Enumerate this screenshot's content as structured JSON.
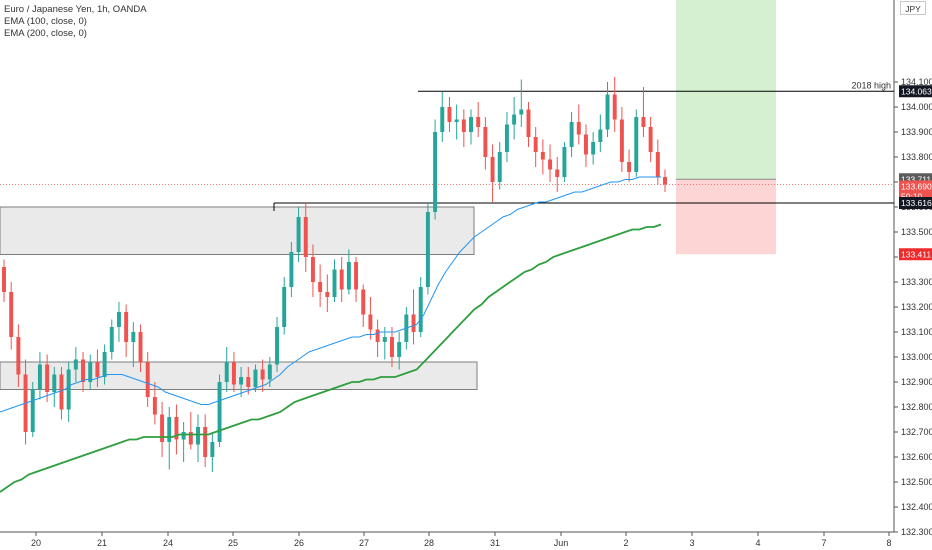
{
  "legend": {
    "title": "Euro / Japanese Yen, 1h, OANDA",
    "ema100": "EMA (100, close, 0)",
    "ema200": "EMA (200, close, 0)"
  },
  "currency": "JPY",
  "colors": {
    "up": "#26a69a",
    "down": "#ef5350",
    "ema100": "#2196f3",
    "ema200": "#2e9e3e",
    "zone_fill": "#e6e6e6",
    "zone_border": "#7d7d7d",
    "profit": "#d4f0d0",
    "loss": "#fdd5d5",
    "level_line": "#000000"
  },
  "chart_data": {
    "type": "candlestick",
    "symbol": "EURJPY",
    "timeframe": "1h",
    "ylim": [
      132.28,
      134.38
    ],
    "y_ticks": [
      "134.100",
      "134.000",
      "133.900",
      "133.800",
      "133.700",
      "133.600",
      "133.500",
      "133.400",
      "133.300",
      "133.200",
      "133.100",
      "133.000",
      "132.900",
      "132.800",
      "132.700",
      "132.600",
      "132.500",
      "132.400",
      "132.300"
    ],
    "x_ticks": [
      "20",
      "21",
      "24",
      "25",
      "26",
      "27",
      "28",
      "31",
      "Jun",
      "2",
      "3",
      "4",
      "7",
      "8"
    ],
    "candles": [
      [
        133.36,
        133.39,
        133.22,
        133.26
      ],
      [
        133.26,
        133.3,
        133.03,
        133.08
      ],
      [
        133.08,
        133.13,
        132.88,
        132.93
      ],
      [
        132.93,
        132.99,
        132.65,
        132.7
      ],
      [
        132.7,
        132.9,
        132.68,
        132.87
      ],
      [
        132.87,
        133.02,
        132.83,
        132.97
      ],
      [
        132.97,
        133.01,
        132.82,
        132.86
      ],
      [
        132.86,
        132.96,
        132.8,
        132.93
      ],
      [
        132.93,
        132.96,
        132.75,
        132.79
      ],
      [
        132.79,
        132.98,
        132.74,
        132.95
      ],
      [
        132.95,
        133.04,
        132.9,
        132.99
      ],
      [
        132.99,
        133.02,
        132.86,
        132.9
      ],
      [
        132.9,
        133.01,
        132.87,
        132.98
      ],
      [
        132.98,
        133.03,
        132.88,
        132.92
      ],
      [
        132.92,
        133.05,
        132.89,
        133.02
      ],
      [
        133.02,
        133.15,
        132.99,
        133.12
      ],
      [
        133.12,
        133.22,
        133.06,
        133.18
      ],
      [
        133.18,
        133.21,
        133.0,
        133.06
      ],
      [
        133.06,
        133.14,
        132.96,
        133.1
      ],
      [
        133.1,
        133.13,
        132.94,
        132.98
      ],
      [
        132.98,
        133.02,
        132.8,
        132.84
      ],
      [
        132.84,
        132.9,
        132.73,
        132.77
      ],
      [
        132.77,
        132.82,
        132.6,
        132.66
      ],
      [
        132.66,
        132.8,
        132.55,
        132.76
      ],
      [
        132.76,
        132.81,
        132.61,
        132.67
      ],
      [
        132.67,
        132.74,
        132.58,
        132.7
      ],
      [
        132.7,
        132.78,
        132.63,
        132.65
      ],
      [
        132.65,
        132.77,
        132.58,
        132.72
      ],
      [
        132.72,
        132.77,
        132.56,
        132.6
      ],
      [
        132.6,
        132.7,
        132.54,
        132.66
      ],
      [
        132.66,
        132.93,
        132.64,
        132.9
      ],
      [
        132.9,
        133.04,
        132.86,
        132.98
      ],
      [
        132.98,
        133.02,
        132.86,
        132.89
      ],
      [
        132.89,
        132.96,
        132.84,
        132.92
      ],
      [
        132.92,
        132.96,
        132.85,
        132.88
      ],
      [
        132.88,
        132.97,
        132.86,
        132.95
      ],
      [
        132.95,
        132.99,
        132.86,
        132.91
      ],
      [
        132.91,
        133.0,
        132.88,
        132.97
      ],
      [
        132.97,
        133.16,
        132.94,
        133.12
      ],
      [
        133.12,
        133.32,
        133.09,
        133.28
      ],
      [
        133.28,
        133.46,
        133.24,
        133.42
      ],
      [
        133.42,
        133.6,
        133.38,
        133.56
      ],
      [
        133.56,
        133.62,
        133.34,
        133.4
      ],
      [
        133.4,
        133.45,
        133.24,
        133.3
      ],
      [
        133.3,
        133.37,
        133.2,
        133.26
      ],
      [
        133.26,
        133.33,
        133.18,
        133.24
      ],
      [
        133.24,
        133.39,
        133.22,
        133.35
      ],
      [
        133.35,
        133.4,
        133.22,
        133.27
      ],
      [
        133.27,
        133.43,
        133.25,
        133.38
      ],
      [
        133.38,
        133.4,
        133.22,
        133.27
      ],
      [
        133.27,
        133.29,
        133.12,
        133.17
      ],
      [
        133.17,
        133.24,
        133.07,
        133.11
      ],
      [
        133.11,
        133.15,
        133.0,
        133.06
      ],
      [
        133.06,
        133.12,
        132.99,
        133.08
      ],
      [
        133.08,
        133.12,
        132.96,
        133.0
      ],
      [
        133.0,
        133.1,
        132.95,
        133.06
      ],
      [
        133.06,
        133.2,
        133.03,
        133.17
      ],
      [
        133.17,
        133.27,
        133.05,
        133.1
      ],
      [
        133.1,
        133.32,
        133.08,
        133.28
      ],
      [
        133.28,
        133.62,
        133.25,
        133.58
      ],
      [
        133.58,
        133.95,
        133.55,
        133.9
      ],
      [
        133.9,
        134.06,
        133.86,
        134.0
      ],
      [
        134.0,
        134.04,
        133.9,
        133.94
      ],
      [
        133.94,
        134.01,
        133.87,
        133.95
      ],
      [
        133.95,
        133.99,
        133.84,
        133.9
      ],
      [
        133.9,
        133.99,
        133.85,
        133.96
      ],
      [
        133.96,
        134.02,
        133.88,
        133.92
      ],
      [
        133.92,
        133.96,
        133.75,
        133.8
      ],
      [
        133.8,
        133.85,
        133.62,
        133.7
      ],
      [
        133.7,
        133.86,
        133.67,
        133.82
      ],
      [
        133.82,
        133.98,
        133.78,
        133.93
      ],
      [
        133.93,
        134.04,
        133.87,
        133.97
      ],
      [
        133.97,
        134.11,
        133.92,
        133.99
      ],
      [
        133.99,
        134.02,
        133.84,
        133.88
      ],
      [
        133.88,
        133.92,
        133.76,
        133.82
      ],
      [
        133.82,
        133.87,
        133.73,
        133.79
      ],
      [
        133.79,
        133.85,
        133.7,
        133.75
      ],
      [
        133.75,
        133.8,
        133.66,
        133.72
      ],
      [
        133.72,
        133.86,
        133.7,
        133.84
      ],
      [
        133.84,
        133.98,
        133.8,
        133.94
      ],
      [
        133.94,
        134.01,
        133.85,
        133.89
      ],
      [
        133.89,
        133.93,
        133.76,
        133.81
      ],
      [
        133.81,
        133.9,
        133.77,
        133.86
      ],
      [
        133.86,
        133.97,
        133.82,
        133.91
      ],
      [
        133.91,
        134.1,
        133.88,
        134.05
      ],
      [
        134.05,
        134.12,
        133.9,
        133.95
      ],
      [
        133.95,
        134.0,
        133.74,
        133.78
      ],
      [
        133.78,
        133.83,
        133.7,
        133.74
      ],
      [
        133.74,
        133.99,
        133.72,
        133.96
      ],
      [
        133.96,
        134.08,
        133.88,
        133.92
      ],
      [
        133.92,
        133.96,
        133.78,
        133.82
      ],
      [
        133.82,
        133.87,
        133.69,
        133.72
      ],
      [
        133.72,
        133.75,
        133.66,
        133.69
      ]
    ],
    "ema100": [
      132.78,
      132.79,
      132.8,
      132.81,
      132.82,
      132.83,
      132.84,
      132.85,
      132.86,
      132.87,
      132.89,
      132.9,
      132.91,
      132.91,
      132.92,
      132.93,
      132.93,
      132.93,
      132.92,
      132.91,
      132.9,
      132.89,
      132.88,
      132.86,
      132.85,
      132.84,
      132.83,
      132.82,
      132.81,
      132.81,
      132.82,
      132.83,
      132.84,
      132.85,
      132.86,
      132.87,
      132.88,
      132.89,
      132.91,
      132.93,
      132.96,
      132.98,
      133.0,
      133.02,
      133.03,
      133.04,
      133.05,
      133.06,
      133.07,
      133.08,
      133.08,
      133.09,
      133.09,
      133.1,
      133.1,
      133.1,
      133.11,
      133.12,
      133.13,
      133.17,
      133.23,
      133.29,
      133.34,
      133.38,
      133.42,
      133.45,
      133.48,
      133.5,
      133.52,
      133.54,
      133.56,
      133.57,
      133.59,
      133.6,
      133.61,
      133.62,
      133.62,
      133.63,
      133.64,
      133.65,
      133.66,
      133.66,
      133.67,
      133.68,
      133.69,
      133.7,
      133.7,
      133.71,
      133.71,
      133.72,
      133.72,
      133.72,
      133.72
    ],
    "ema200": [
      132.46,
      132.48,
      132.5,
      132.51,
      132.53,
      132.54,
      132.55,
      132.56,
      132.57,
      132.58,
      132.59,
      132.6,
      132.61,
      132.62,
      132.63,
      132.64,
      132.65,
      132.66,
      132.67,
      132.67,
      132.68,
      132.68,
      132.68,
      132.68,
      132.68,
      132.69,
      132.69,
      132.69,
      132.69,
      132.69,
      132.7,
      132.71,
      132.72,
      132.73,
      132.74,
      132.75,
      132.75,
      132.76,
      132.77,
      132.78,
      132.8,
      132.82,
      132.83,
      132.84,
      132.85,
      132.86,
      132.87,
      132.88,
      132.89,
      132.9,
      132.9,
      132.91,
      132.91,
      132.92,
      132.92,
      132.92,
      132.93,
      132.94,
      132.95,
      132.98,
      133.01,
      133.04,
      133.07,
      133.1,
      133.13,
      133.16,
      133.19,
      133.21,
      133.24,
      133.26,
      133.28,
      133.3,
      133.32,
      133.34,
      133.35,
      133.37,
      133.38,
      133.4,
      133.41,
      133.42,
      133.43,
      133.44,
      133.45,
      133.46,
      133.47,
      133.48,
      133.49,
      133.5,
      133.51,
      133.51,
      133.52,
      133.52,
      133.53
    ],
    "zones": [
      {
        "low": 133.41,
        "high": 133.6
      },
      {
        "low": 132.87,
        "high": 132.98
      }
    ],
    "level_2018_high": {
      "label": "2018 high",
      "price": 134.063
    },
    "level_support": {
      "price": 133.616
    },
    "position": {
      "entry": 133.711,
      "target": 134.38,
      "stop": 133.411
    },
    "price_labels": {
      "high": "134.063",
      "entry": "133.711",
      "current": "133.690",
      "countdown": "50:10",
      "support": "133.616",
      "stop": "133.411"
    }
  }
}
